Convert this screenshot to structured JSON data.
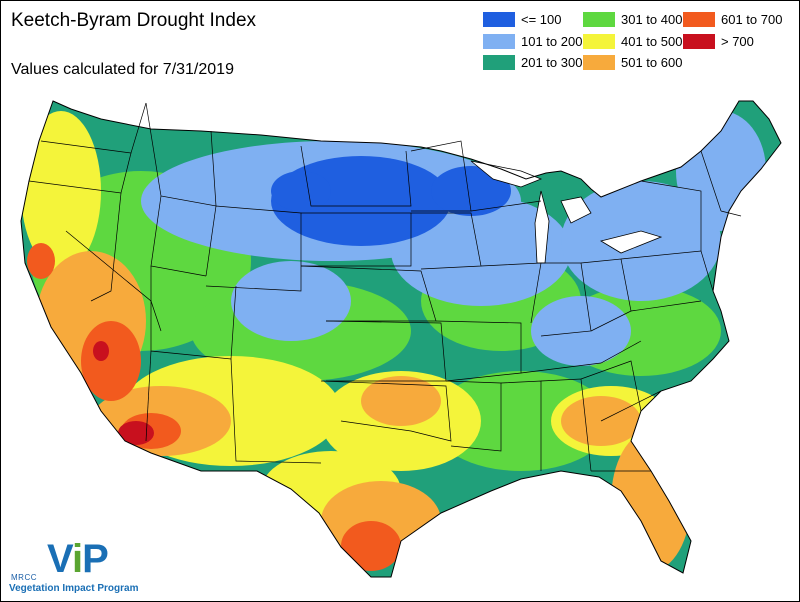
{
  "title": "Keetch-Byram Drought Index",
  "subtitle": "Values calculated for 7/31/2019",
  "legend": {
    "items": [
      {
        "label": "<= 100",
        "color": "#1f5fe0"
      },
      {
        "label": "101 to 200",
        "color": "#7fb0f2"
      },
      {
        "label": "201 to 300",
        "color": "#20a07a"
      },
      {
        "label": "301 to 400",
        "color": "#5ed840"
      },
      {
        "label": "401 to 500",
        "color": "#f4f43a"
      },
      {
        "label": "501 to 600",
        "color": "#f7aa3c"
      },
      {
        "label": "601 to 700",
        "color": "#f25a1e"
      },
      {
        "label": "> 700",
        "color": "#c8101e"
      }
    ]
  },
  "logo": {
    "org": "MRCC",
    "name_v": "V",
    "name_i": "i",
    "name_p": "P",
    "tagline": "Vegetation Impact Program"
  },
  "map": {
    "boundary_color": "#000000",
    "background_color": "#ffffff"
  }
}
